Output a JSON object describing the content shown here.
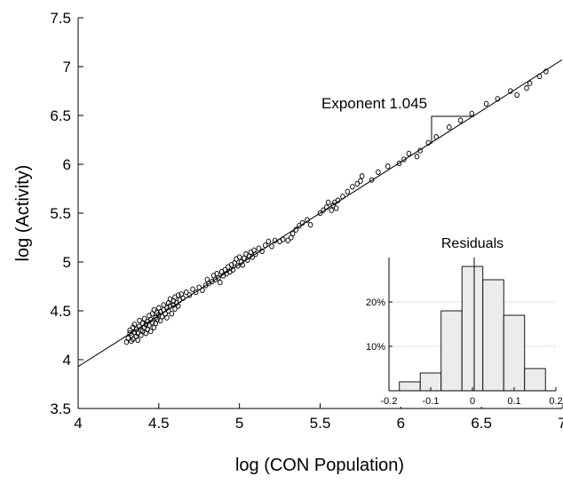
{
  "chart_data": [
    {
      "type": "scatter",
      "xlabel": "log (CON Population)",
      "ylabel": "log (Activity)",
      "xlim": [
        4,
        7
      ],
      "ylim": [
        3.5,
        7.5
      ],
      "xticks": [
        "4",
        "4.5",
        "5",
        "5.5",
        "6",
        "6.5",
        "7"
      ],
      "xtick_values": [
        4,
        4.5,
        5,
        5.5,
        6,
        6.5,
        7
      ],
      "yticks": [
        "3.5",
        "4",
        "4.5",
        "5",
        "5.5",
        "6",
        "6.5",
        "7",
        "7.5"
      ],
      "ytick_values": [
        3.5,
        4,
        4.5,
        5,
        5.5,
        6,
        6.5,
        7,
        7.5
      ],
      "grid": false,
      "fit_line": {
        "x": [
          4,
          7
        ],
        "y": [
          3.93,
          7.07
        ]
      },
      "annotation": "Exponent 1.045",
      "points": [
        [
          4.3,
          4.18
        ],
        [
          4.31,
          4.22
        ],
        [
          4.32,
          4.27
        ],
        [
          4.32,
          4.3
        ],
        [
          4.33,
          4.19
        ],
        [
          4.33,
          4.25
        ],
        [
          4.34,
          4.33
        ],
        [
          4.34,
          4.21
        ],
        [
          4.35,
          4.28
        ],
        [
          4.35,
          4.36
        ],
        [
          4.36,
          4.24
        ],
        [
          4.36,
          4.31
        ],
        [
          4.37,
          4.2
        ],
        [
          4.37,
          4.27
        ],
        [
          4.38,
          4.34
        ],
        [
          4.38,
          4.4
        ],
        [
          4.39,
          4.25
        ],
        [
          4.39,
          4.3
        ],
        [
          4.4,
          4.37
        ],
        [
          4.4,
          4.29
        ],
        [
          4.41,
          4.33
        ],
        [
          4.41,
          4.42
        ],
        [
          4.42,
          4.27
        ],
        [
          4.42,
          4.36
        ],
        [
          4.43,
          4.31
        ],
        [
          4.43,
          4.39
        ],
        [
          4.44,
          4.45
        ],
        [
          4.44,
          4.35
        ],
        [
          4.45,
          4.29
        ],
        [
          4.45,
          4.41
        ],
        [
          4.46,
          4.47
        ],
        [
          4.46,
          4.38
        ],
        [
          4.47,
          4.33
        ],
        [
          4.47,
          4.51
        ],
        [
          4.48,
          4.43
        ],
        [
          4.48,
          4.37
        ],
        [
          4.49,
          4.48
        ],
        [
          4.49,
          4.41
        ],
        [
          4.5,
          4.46
        ],
        [
          4.5,
          4.53
        ],
        [
          4.51,
          4.4
        ],
        [
          4.51,
          4.49
        ],
        [
          4.52,
          4.44
        ],
        [
          4.53,
          4.51
        ],
        [
          4.53,
          4.56
        ],
        [
          4.54,
          4.47
        ],
        [
          4.55,
          4.53
        ],
        [
          4.55,
          4.43
        ],
        [
          4.56,
          4.58
        ],
        [
          4.56,
          4.5
        ],
        [
          4.57,
          4.55
        ],
        [
          4.57,
          4.62
        ],
        [
          4.58,
          4.47
        ],
        [
          4.59,
          4.56
        ],
        [
          4.59,
          4.6
        ],
        [
          4.6,
          4.52
        ],
        [
          4.6,
          4.64
        ],
        [
          4.61,
          4.58
        ],
        [
          4.62,
          4.55
        ],
        [
          4.62,
          4.66
        ],
        [
          4.63,
          4.61
        ],
        [
          4.64,
          4.67
        ],
        [
          4.65,
          4.63
        ],
        [
          4.67,
          4.69
        ],
        [
          4.69,
          4.66
        ],
        [
          4.71,
          4.72
        ],
        [
          4.73,
          4.69
        ],
        [
          4.75,
          4.74
        ],
        [
          4.77,
          4.71
        ],
        [
          4.79,
          4.76
        ],
        [
          4.8,
          4.82
        ],
        [
          4.81,
          4.78
        ],
        [
          4.83,
          4.8
        ],
        [
          4.84,
          4.86
        ],
        [
          4.85,
          4.82
        ],
        [
          4.86,
          4.88
        ],
        [
          4.87,
          4.84
        ],
        [
          4.88,
          4.79
        ],
        [
          4.89,
          4.9
        ],
        [
          4.9,
          4.86
        ],
        [
          4.91,
          4.92
        ],
        [
          4.92,
          4.88
        ],
        [
          4.93,
          4.95
        ],
        [
          4.94,
          4.9
        ],
        [
          4.95,
          4.97
        ],
        [
          4.96,
          4.92
        ],
        [
          4.97,
          4.99
        ],
        [
          4.98,
          5.03
        ],
        [
          4.99,
          4.96
        ],
        [
          5.0,
          5.05
        ],
        [
          5.01,
          5.0
        ],
        [
          5.02,
          4.97
        ],
        [
          5.03,
          5.04
        ],
        [
          5.04,
          5.08
        ],
        [
          5.05,
          5.02
        ],
        [
          5.06,
          5.06
        ],
        [
          5.07,
          5.1
        ],
        [
          5.08,
          5.05
        ],
        [
          5.09,
          5.12
        ],
        [
          5.1,
          5.08
        ],
        [
          5.12,
          5.14
        ],
        [
          5.14,
          5.11
        ],
        [
          5.16,
          5.17
        ],
        [
          5.18,
          5.21
        ],
        [
          5.2,
          5.16
        ],
        [
          5.22,
          5.22
        ],
        [
          5.25,
          5.21
        ],
        [
          5.27,
          5.23
        ],
        [
          5.3,
          5.22
        ],
        [
          5.32,
          5.25
        ],
        [
          5.33,
          5.29
        ],
        [
          5.35,
          5.33
        ],
        [
          5.37,
          5.37
        ],
        [
          5.39,
          5.4
        ],
        [
          5.42,
          5.43
        ],
        [
          5.44,
          5.38
        ],
        [
          5.5,
          5.5
        ],
        [
          5.52,
          5.53
        ],
        [
          5.54,
          5.56
        ],
        [
          5.55,
          5.61
        ],
        [
          5.57,
          5.53
        ],
        [
          5.58,
          5.58
        ],
        [
          5.59,
          5.61
        ],
        [
          5.6,
          5.55
        ],
        [
          5.61,
          5.63
        ],
        [
          5.64,
          5.67
        ],
        [
          5.67,
          5.72
        ],
        [
          5.7,
          5.77
        ],
        [
          5.73,
          5.8
        ],
        [
          5.75,
          5.83
        ],
        [
          5.76,
          5.88
        ],
        [
          5.82,
          5.84
        ],
        [
          5.86,
          5.92
        ],
        [
          5.92,
          5.98
        ],
        [
          5.99,
          6.01
        ],
        [
          6.02,
          6.05
        ],
        [
          6.05,
          6.11
        ],
        [
          6.1,
          6.08
        ],
        [
          6.12,
          6.14
        ],
        [
          6.17,
          6.22
        ],
        [
          6.22,
          6.28
        ],
        [
          6.3,
          6.38
        ],
        [
          6.37,
          6.45
        ],
        [
          6.44,
          6.52
        ],
        [
          6.53,
          6.62
        ],
        [
          6.6,
          6.67
        ],
        [
          6.68,
          6.75
        ],
        [
          6.72,
          6.71
        ],
        [
          6.78,
          6.78
        ],
        [
          6.8,
          6.83
        ],
        [
          6.86,
          6.9
        ],
        [
          6.9,
          6.95
        ]
      ]
    },
    {
      "type": "bar",
      "title": "Residuals",
      "xlim": [
        -0.2,
        0.2
      ],
      "ylim": [
        0,
        30
      ],
      "bin_edges": [
        -0.175,
        -0.125,
        -0.075,
        -0.025,
        0.025,
        0.075,
        0.125,
        0.175
      ],
      "values": [
        2,
        4,
        18,
        28,
        25,
        17,
        5,
        0.5
      ],
      "xticks": [
        "-0.2",
        "-0.1",
        "0",
        "0.1",
        "0.2"
      ],
      "xtick_values": [
        -0.2,
        -0.1,
        0,
        0.1,
        0.2
      ],
      "yticks": [
        "10%",
        "20%"
      ],
      "ytick_values": [
        10,
        20
      ],
      "grid": "horizontal dotted",
      "bar_color": "#ececec"
    }
  ]
}
